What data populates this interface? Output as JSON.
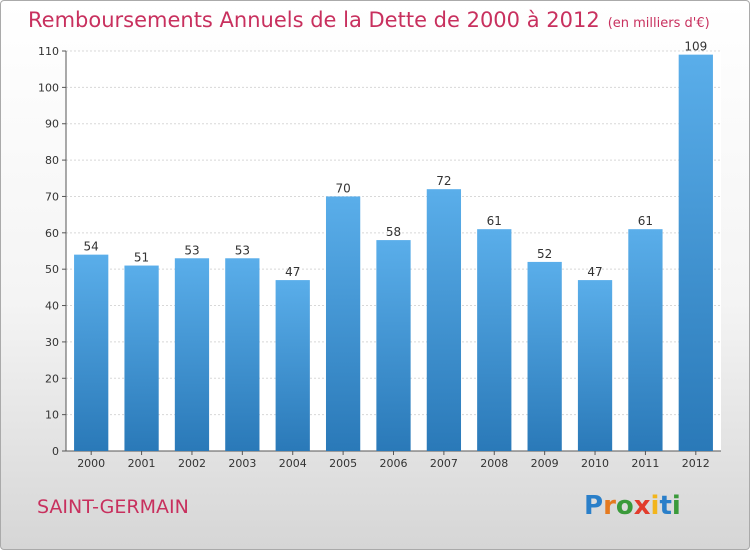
{
  "title": "Remboursements Annuels de la Dette de 2000 à 2012",
  "subtitle": "(en milliers d'€)",
  "location": "SAINT-GERMAIN",
  "logo": {
    "text": "Proxiti",
    "letter_colors": [
      "#2a7fc9",
      "#e57a1f",
      "#3a9a3a",
      "#e23c2c",
      "#f2b51c",
      "#2a7fc9",
      "#3a9a3a"
    ]
  },
  "colors": {
    "title": "#c8305e",
    "bar_top": "#5aaeea",
    "bar_bottom": "#2a79b8"
  },
  "chart_data": {
    "type": "bar",
    "categories": [
      "2000",
      "2001",
      "2002",
      "2003",
      "2004",
      "2005",
      "2006",
      "2007",
      "2008",
      "2009",
      "2010",
      "2011",
      "2012"
    ],
    "values": [
      54,
      51,
      53,
      53,
      47,
      70,
      58,
      72,
      61,
      52,
      47,
      61,
      109
    ],
    "ylim": [
      0,
      110
    ],
    "yticks": [
      0,
      10,
      20,
      30,
      40,
      50,
      60,
      70,
      80,
      90,
      100,
      110
    ],
    "grid": true,
    "data_labels": true
  }
}
